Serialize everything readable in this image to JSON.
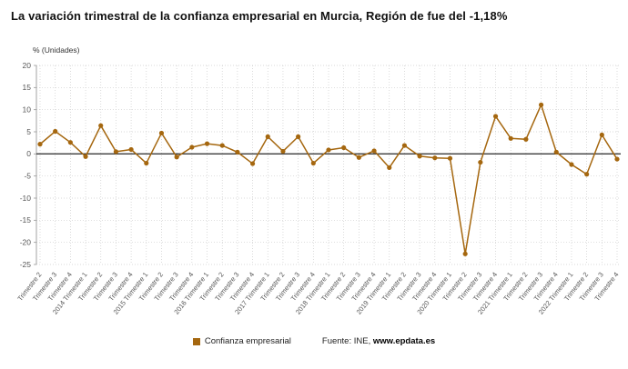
{
  "page": {
    "title": "La variación trimestral de la confianza empresarial en Murcia, Región de fue del -1,18%"
  },
  "axis_note": "% (Unidades)",
  "legend": {
    "label": "Confianza empresarial"
  },
  "source": {
    "prefix": "Fuente: INE, ",
    "link": "www.epdata.es"
  },
  "colors": {
    "line": "#a5670f",
    "grid": "#cccccc",
    "zero_line": "#3a3a3a",
    "axis_text": "#555555",
    "axis_line": "#999999"
  },
  "chart_data": {
    "type": "line",
    "title": "La variación trimestral de la confianza empresarial en Murcia, Región de fue del -1,18%",
    "ylabel": "% (Unidades)",
    "xlabel": "",
    "ylim": [
      -25,
      20
    ],
    "yticks": [
      20,
      15,
      10,
      5,
      0,
      -5,
      -10,
      -15,
      -20,
      -25
    ],
    "grid": "dotted",
    "legend_position": "bottom",
    "categories": [
      "Trimestre 2",
      "Trimestre 3",
      "Trimestre 4",
      "2014 Trimestre 1",
      "Trimestre 2",
      "Trimestre 3",
      "Trimestre 4",
      "2015 Trimestre 1",
      "Trimestre 2",
      "Trimestre 3",
      "Trimestre 4",
      "2016 Trimestre 1",
      "Trimestre 2",
      "Trimestre 3",
      "Trimestre 4",
      "2017 Trimestre 1",
      "Trimestre 2",
      "Trimestre 3",
      "Trimestre 4",
      "2018 Trimestre 1",
      "Trimestre 2",
      "Trimestre 3",
      "Trimestre 4",
      "2019 Trimestre 1",
      "Trimestre 2",
      "Trimestre 3",
      "Trimestre 4",
      "2020 Trimestre 1",
      "Trimestre 2",
      "Trimestre 3",
      "Trimestre 4",
      "2021 Trimestre 1",
      "Trimestre 2",
      "Trimestre 3",
      "Trimestre 4",
      "2022 Trimestre 1",
      "Trimestre 2",
      "Trimestre 3",
      "Trimestre 4"
    ],
    "series": [
      {
        "name": "Confianza empresarial",
        "values": [
          2.2,
          5.1,
          2.6,
          -0.6,
          6.4,
          0.5,
          1.0,
          -2.1,
          4.7,
          -0.7,
          1.5,
          2.3,
          1.9,
          0.4,
          -2.2,
          3.9,
          0.6,
          3.9,
          -2.1,
          0.9,
          1.4,
          -0.8,
          0.7,
          -3.1,
          1.9,
          -0.5,
          -0.9,
          -1.0,
          -22.6,
          -1.9,
          8.5,
          3.5,
          3.3,
          11.1,
          0.4,
          -2.4,
          -4.6,
          4.3,
          -1.18
        ]
      }
    ]
  }
}
